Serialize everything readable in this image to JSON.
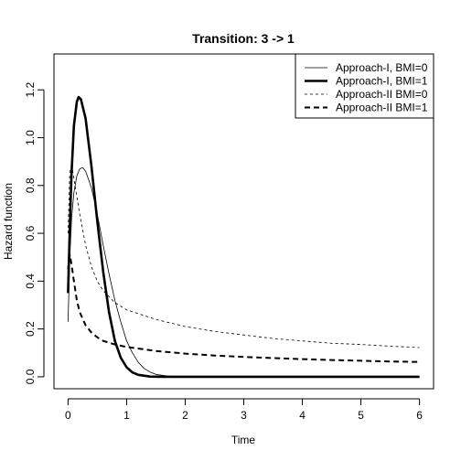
{
  "chart_data": {
    "type": "line",
    "title": "Transition: 3 -> 1",
    "xlabel": "Time",
    "ylabel": "Hazard function",
    "xlim": [
      -0.24,
      6.24
    ],
    "ylim": [
      -0.05,
      1.35
    ],
    "x_ticks": [
      0,
      1,
      2,
      3,
      4,
      5,
      6
    ],
    "x_tick_labels": [
      "0",
      "1",
      "2",
      "3",
      "4",
      "5",
      "6"
    ],
    "y_ticks": [
      0.0,
      0.2,
      0.4,
      0.6,
      0.8,
      1.0,
      1.2
    ],
    "y_tick_labels": [
      "0.0",
      "0.2",
      "0.4",
      "0.6",
      "0.8",
      "1.0",
      "1.2"
    ],
    "grid": false,
    "legend_position": "top-right",
    "series": [
      {
        "name": "Approach-I, BMI=0",
        "style": "thin-solid",
        "points": [
          [
            0.0,
            0.23
          ],
          [
            0.03,
            0.5
          ],
          [
            0.06,
            0.66
          ],
          [
            0.1,
            0.77
          ],
          [
            0.15,
            0.84
          ],
          [
            0.2,
            0.87
          ],
          [
            0.25,
            0.875
          ],
          [
            0.3,
            0.86
          ],
          [
            0.4,
            0.79
          ],
          [
            0.5,
            0.68
          ],
          [
            0.6,
            0.55
          ],
          [
            0.7,
            0.43
          ],
          [
            0.8,
            0.32
          ],
          [
            0.9,
            0.23
          ],
          [
            1.0,
            0.15
          ],
          [
            1.1,
            0.1
          ],
          [
            1.2,
            0.06
          ],
          [
            1.3,
            0.035
          ],
          [
            1.4,
            0.02
          ],
          [
            1.5,
            0.01
          ],
          [
            1.7,
            0.003
          ],
          [
            2.0,
            0.0
          ],
          [
            3.0,
            0.0
          ],
          [
            4.0,
            0.0
          ],
          [
            5.0,
            0.0
          ],
          [
            6.0,
            0.0
          ]
        ]
      },
      {
        "name": "Approach-I, BMI=1",
        "style": "thick-solid",
        "points": [
          [
            0.0,
            0.35
          ],
          [
            0.03,
            0.62
          ],
          [
            0.06,
            0.85
          ],
          [
            0.1,
            1.05
          ],
          [
            0.15,
            1.15
          ],
          [
            0.18,
            1.17
          ],
          [
            0.22,
            1.16
          ],
          [
            0.3,
            1.08
          ],
          [
            0.4,
            0.88
          ],
          [
            0.5,
            0.65
          ],
          [
            0.6,
            0.44
          ],
          [
            0.7,
            0.27
          ],
          [
            0.8,
            0.15
          ],
          [
            0.9,
            0.08
          ],
          [
            1.0,
            0.04
          ],
          [
            1.1,
            0.018
          ],
          [
            1.2,
            0.008
          ],
          [
            1.4,
            0.001
          ],
          [
            1.6,
            0.0
          ],
          [
            2.0,
            0.0
          ],
          [
            3.0,
            0.0
          ],
          [
            4.0,
            0.0
          ],
          [
            5.0,
            0.0
          ],
          [
            6.0,
            0.0
          ]
        ]
      },
      {
        "name": "Approach-II BMI=0",
        "style": "thin-dashed",
        "points": [
          [
            0.0,
            0.6
          ],
          [
            0.03,
            0.86
          ],
          [
            0.06,
            0.88
          ],
          [
            0.08,
            0.86
          ],
          [
            0.12,
            0.8
          ],
          [
            0.2,
            0.68
          ],
          [
            0.3,
            0.55
          ],
          [
            0.4,
            0.46
          ],
          [
            0.5,
            0.4
          ],
          [
            0.6,
            0.36
          ],
          [
            0.8,
            0.31
          ],
          [
            1.0,
            0.28
          ],
          [
            1.5,
            0.24
          ],
          [
            2.0,
            0.21
          ],
          [
            2.5,
            0.19
          ],
          [
            3.0,
            0.175
          ],
          [
            3.5,
            0.16
          ],
          [
            4.0,
            0.15
          ],
          [
            4.5,
            0.14
          ],
          [
            5.0,
            0.135
          ],
          [
            5.5,
            0.128
          ],
          [
            6.0,
            0.122
          ]
        ]
      },
      {
        "name": "Approach-II BMI=1",
        "style": "thick-dashed",
        "points": [
          [
            0.0,
            0.45
          ],
          [
            0.03,
            0.51
          ],
          [
            0.06,
            0.47
          ],
          [
            0.1,
            0.4
          ],
          [
            0.15,
            0.32
          ],
          [
            0.2,
            0.27
          ],
          [
            0.3,
            0.215
          ],
          [
            0.4,
            0.185
          ],
          [
            0.5,
            0.165
          ],
          [
            0.6,
            0.15
          ],
          [
            0.8,
            0.135
          ],
          [
            1.0,
            0.125
          ],
          [
            1.5,
            0.108
          ],
          [
            2.0,
            0.097
          ],
          [
            2.5,
            0.089
          ],
          [
            3.0,
            0.083
          ],
          [
            3.5,
            0.078
          ],
          [
            4.0,
            0.074
          ],
          [
            4.5,
            0.07
          ],
          [
            5.0,
            0.067
          ],
          [
            5.5,
            0.064
          ],
          [
            6.0,
            0.062
          ]
        ]
      }
    ]
  }
}
